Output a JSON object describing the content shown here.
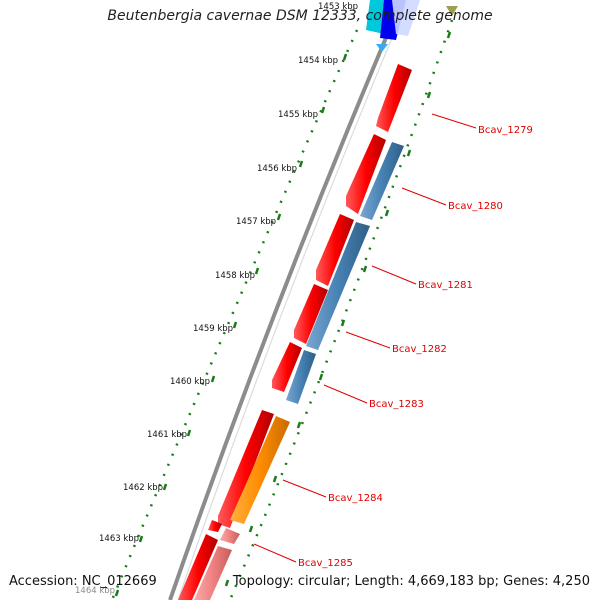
{
  "title": "Beutenbergia cavernae DSM 12333, complete genome",
  "accession": "Accession: NC_012669",
  "summary": "Topology: circular; Length: 4,669,183 bp; Genes: 4,250",
  "ticks": [
    "1453 kbp",
    "1454 kbp",
    "1455 kbp",
    "1456 kbp",
    "1457 kbp",
    "1458 kbp",
    "1459 kbp",
    "1460 kbp",
    "1461 kbp",
    "1462 kbp",
    "1463 kbp",
    "1464 kbp"
  ],
  "genes": [
    "Bcav_1279",
    "Bcav_1280",
    "Bcav_1281",
    "Bcav_1282",
    "Bcav_1283",
    "Bcav_1284",
    "Bcav_1285"
  ],
  "colors": {
    "cds": "#ff0000",
    "cds_light": "#f08080",
    "steelblue": "#4682b4",
    "orange": "#ff8c00",
    "blue": "#0000ee",
    "cyan": "#00c8dc",
    "backbone": "#8c8c8c",
    "tick_green": "#1a7a1a",
    "label_red": "#e00000"
  }
}
